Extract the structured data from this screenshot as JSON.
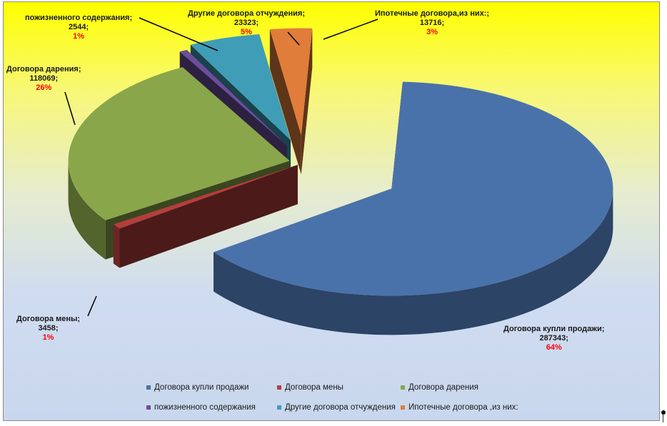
{
  "chart_data": {
    "type": "pie",
    "title": "",
    "exploded": true,
    "three_d": true,
    "legend_position": "bottom",
    "series": [
      {
        "name": "Договора купли продажи",
        "label": "Договора купли продажи;",
        "value": 287343,
        "value_text": "287343;",
        "pct": "64%",
        "color": "#4a72aa"
      },
      {
        "name": "Договора мены",
        "label": "Договора мены;",
        "value": 3458,
        "value_text": "3458;",
        "pct": "1%",
        "color": "#b23f3c"
      },
      {
        "name": "Договора дарения",
        "label": "Договора дарения;",
        "value": 118069,
        "value_text": "118069;",
        "pct": "26%",
        "color": "#8aa64a"
      },
      {
        "name": "пожизненного содержания",
        "label": "пожизненного содержания;",
        "value": 2544,
        "value_text": "2544;",
        "pct": "1%",
        "color": "#6c4e9a"
      },
      {
        "name": "Другие договора отчуждения",
        "label": "Другие договора отчуждения;",
        "value": 23323,
        "value_text": "23323;",
        "pct": "5%",
        "color": "#3f9db8"
      },
      {
        "name": "Ипотечные договора ,из них:",
        "label": "Ипотечные договора,из них:;",
        "value": 13716,
        "value_text": "13716;",
        "pct": "3%",
        "color": "#e07d3a"
      }
    ]
  }
}
